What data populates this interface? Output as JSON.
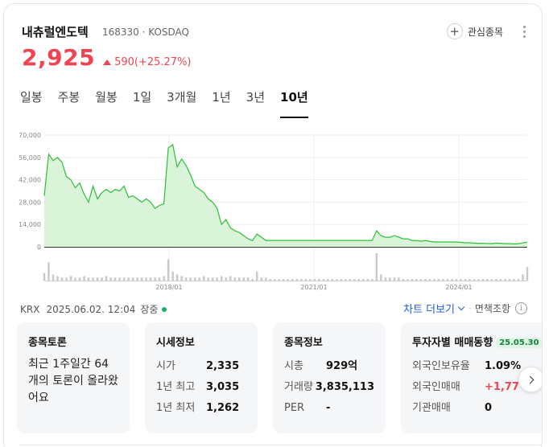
{
  "stock": {
    "name": "내츄럴엔도텍",
    "code_market": "168330 · KOSDAQ",
    "price": "2,925",
    "change": "590(+25.27%)"
  },
  "actions": {
    "watch_label": "관심종목"
  },
  "tabs": [
    {
      "label": "일봉",
      "active": false
    },
    {
      "label": "주봉",
      "active": false
    },
    {
      "label": "월봉",
      "active": false
    },
    {
      "label": "1일",
      "active": false
    },
    {
      "label": "3개월",
      "active": false
    },
    {
      "label": "1년",
      "active": false
    },
    {
      "label": "3년",
      "active": false
    },
    {
      "label": "10년",
      "active": true
    }
  ],
  "status": {
    "exchange": "KRX",
    "datetime": "2025.06.02. 12:04",
    "session": "장중",
    "chart_more": "차트 더보기",
    "adjust": "면책조항",
    "info_icon": "i"
  },
  "cards": {
    "discuss": {
      "title": "종목토론",
      "text": "최근 1주일간 64개의 토론이 올라왔어요"
    },
    "quote": {
      "title": "시세정보",
      "rows": [
        {
          "k": "시가",
          "v": "2,335"
        },
        {
          "k": "1년 최고",
          "v": "3,035"
        },
        {
          "k": "1년 최저",
          "v": "1,262"
        }
      ]
    },
    "info": {
      "title": "종목정보",
      "rows": [
        {
          "k": "시총",
          "v": "929억"
        },
        {
          "k": "거래량",
          "v": "3,835,113"
        },
        {
          "k": "PER",
          "v": "-"
        }
      ]
    },
    "investor": {
      "title": "투자자별 매매동향",
      "badge": "25.05.30",
      "rows": [
        {
          "k": "외국인보유율",
          "v": "1.09%"
        },
        {
          "k": "외국인매매",
          "v": "+1,77"
        },
        {
          "k": "기관매매",
          "v": "0"
        }
      ]
    }
  },
  "chart_data": {
    "type": "area",
    "y_ticks": [
      "70,000",
      "56,000",
      "42,000",
      "28,000",
      "14,000",
      "0"
    ],
    "x_ticks": [
      "2018/01",
      "2021/01",
      "2024/01"
    ],
    "ylim": [
      0,
      70000
    ],
    "grid": true,
    "line_color": "#2fbf3a",
    "fill_color": "#d9f4d9",
    "series": [
      {
        "values": [
          32000,
          58000,
          54000,
          56000,
          53000,
          44000,
          42000,
          37000,
          40000,
          33000,
          28000,
          38000,
          30000,
          34000,
          36000,
          34000,
          36000,
          35000,
          38000,
          31000,
          32000,
          30000,
          28000,
          30000,
          28000,
          24000,
          26000,
          27000,
          62000,
          64000,
          50000,
          55000,
          51000,
          45000,
          38000,
          36000,
          34000,
          30000,
          28000,
          24000,
          14000,
          17000,
          12000,
          10000,
          9000,
          7000,
          5000,
          4000,
          8000,
          6000,
          4000,
          4000,
          4000,
          4000,
          4000,
          4000,
          4000,
          4000,
          4000,
          4000,
          4000,
          4000,
          4000,
          4000,
          4000,
          4000,
          4000,
          4000,
          4000,
          4000,
          4000,
          4000,
          4000,
          4000,
          4000,
          10000,
          7000,
          6000,
          6000,
          7000,
          6000,
          5000,
          5000,
          4000,
          4000,
          3500,
          4000,
          3500,
          3000,
          3000,
          3000,
          3000,
          3000,
          3000,
          2800,
          2500,
          2500,
          2300,
          2200,
          2200,
          2100,
          2000,
          2300,
          2200,
          2000,
          2000,
          1800,
          2000,
          2400,
          2925
        ]
      }
    ],
    "volume": [
      5,
      12,
      4,
      3,
      2,
      2,
      3,
      2,
      2,
      3,
      2,
      2,
      2,
      2,
      3,
      2,
      2,
      2,
      2,
      2,
      2,
      2,
      2,
      2,
      2,
      2,
      2,
      3,
      14,
      6,
      4,
      3,
      2,
      2,
      2,
      2,
      3,
      2,
      2,
      2,
      3,
      2,
      3,
      2,
      2,
      2,
      2,
      1,
      6,
      2,
      2,
      1,
      1,
      1,
      1,
      1,
      1,
      1,
      1,
      1,
      1,
      1,
      1,
      1,
      1,
      1,
      1,
      1,
      1,
      1,
      1,
      1,
      1,
      1,
      1,
      18,
      4,
      2,
      2,
      2,
      2,
      1,
      1,
      1,
      1,
      1,
      1,
      1,
      1,
      1,
      1,
      1,
      1,
      1,
      1,
      1,
      1,
      1,
      1,
      1,
      1,
      1,
      1,
      1,
      1,
      1,
      1,
      1,
      4,
      9
    ]
  }
}
